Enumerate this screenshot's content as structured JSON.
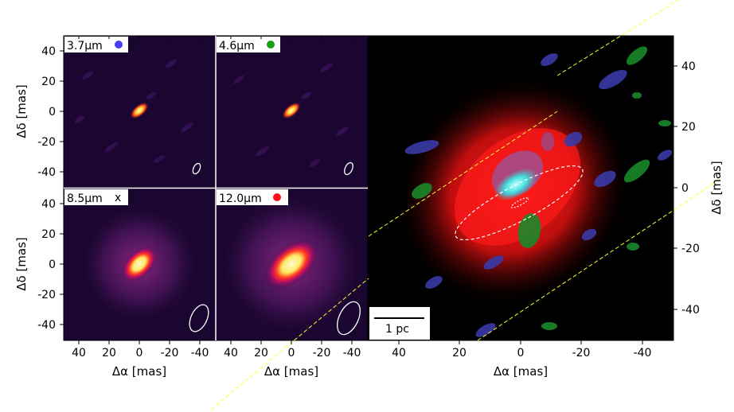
{
  "panels": [
    {
      "label": "3.7μm",
      "marker": "dot",
      "marker_color": "#4a3cf0"
    },
    {
      "label": "4.6μm",
      "marker": "dot",
      "marker_color": "#13a013"
    },
    {
      "label": "8.5μm",
      "marker": "x",
      "marker_color": "#000000"
    },
    {
      "label": "12.0μm",
      "marker": "dot",
      "marker_color": "#ff1010"
    }
  ],
  "left_y_ticks": [
    "40",
    "20",
    "0",
    "-20",
    "-40"
  ],
  "left_x_ticks": [
    "40",
    "20",
    "0",
    "-20",
    "-40"
  ],
  "right_y_ticks": [
    "40",
    "20",
    "0",
    "-20",
    "-40"
  ],
  "right_x_ticks": [
    "40",
    "20",
    "0",
    "-20",
    "-40"
  ],
  "ylabel": "Δδ [mas]",
  "xlabel": "Δα [mas]",
  "scalebar_label": "1 pc",
  "colors": {
    "background_colormap": "#000000",
    "emission_red": "#ff1a1a",
    "cyan_core": "#37e6e0",
    "blue_features": "#3a3aa8",
    "green_features": "#1a8a2a",
    "guide_lines": "#ffff33"
  }
}
